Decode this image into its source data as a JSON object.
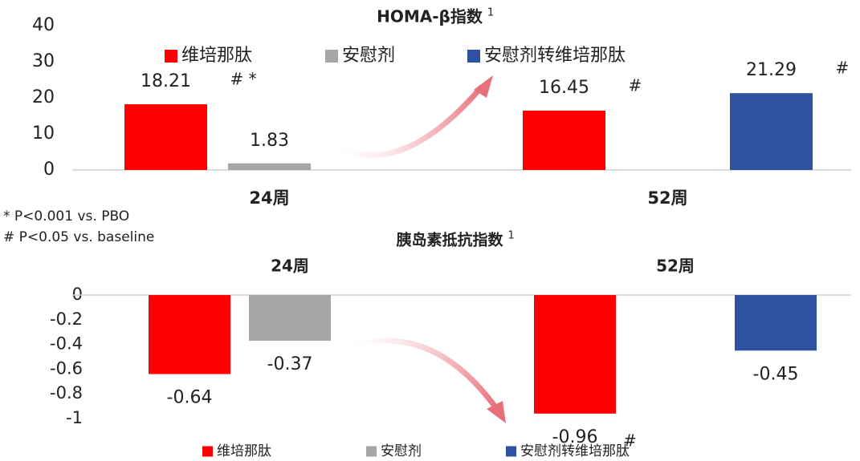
{
  "chart_data": [
    {
      "type": "bar",
      "title": "HOMA-β指数",
      "title_sup": "1",
      "categories": [
        "24周",
        "52周"
      ],
      "series": [
        {
          "name": "维培那肽",
          "color": "#ff0000",
          "values": [
            18.21,
            16.45
          ],
          "notes": [
            "# *",
            "#"
          ]
        },
        {
          "name": "安慰剂",
          "color": "#a6a6a6",
          "values": [
            1.83,
            null
          ],
          "notes": [
            null,
            null
          ]
        },
        {
          "name": "安慰剂转维培那肽",
          "color": "#2f52a0",
          "values": [
            null,
            21.29
          ],
          "notes": [
            null,
            "#"
          ]
        }
      ],
      "ylim": [
        0,
        40
      ],
      "yticks": [
        0,
        10,
        20,
        30,
        40
      ],
      "grid": false,
      "legend": "top"
    },
    {
      "type": "bar",
      "title": "胰岛素抵抗指数",
      "title_sup": "1",
      "categories": [
        "24周",
        "52周"
      ],
      "series": [
        {
          "name": "维培那肽",
          "color": "#ff0000",
          "values": [
            -0.64,
            -0.96
          ],
          "notes": [
            null,
            "#"
          ]
        },
        {
          "name": "安慰剂",
          "color": "#a6a6a6",
          "values": [
            -0.37,
            null
          ],
          "notes": [
            null,
            null
          ]
        },
        {
          "name": "安慰剂转维培那肽",
          "color": "#2f52a0",
          "values": [
            null,
            -0.45
          ],
          "notes": [
            null,
            null
          ]
        }
      ],
      "ylim": [
        -1,
        0
      ],
      "yticks": [
        0,
        -0.2,
        -0.4,
        -0.6,
        -0.8,
        -1
      ],
      "grid": false,
      "legend": "bottom"
    }
  ],
  "footnotes": [
    "* P<0.001 vs. PBO",
    "# P<0.05 vs. baseline"
  ]
}
